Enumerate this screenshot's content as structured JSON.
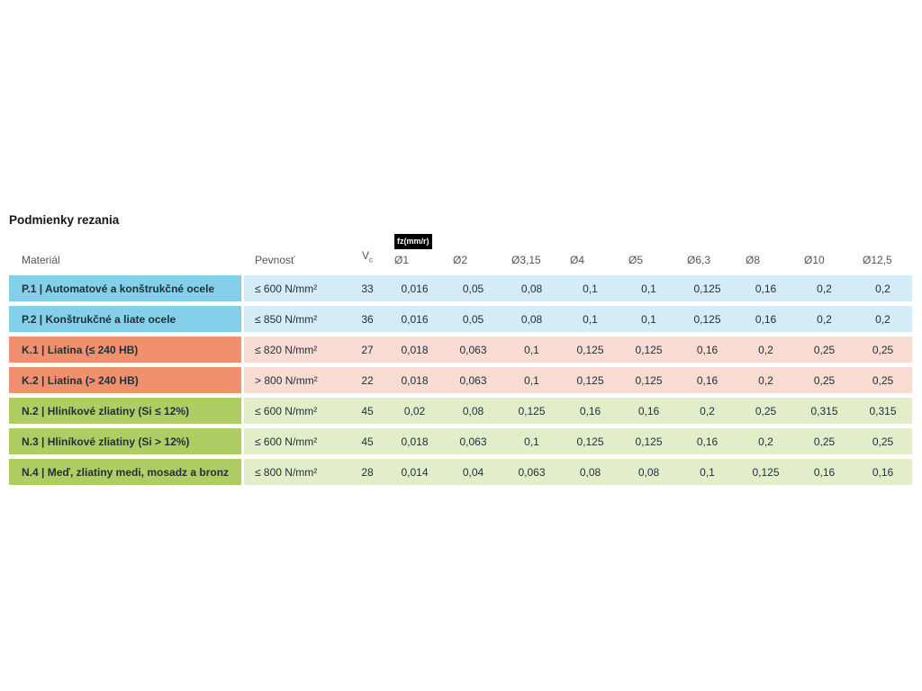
{
  "title": "Podmienky rezania",
  "table": {
    "headers": {
      "material": "Materiál",
      "strength": "Pevnosť",
      "vc_symbol": "V",
      "vc_subscript": "c",
      "fz_badge": "fz(mm/r)",
      "diameters": [
        "Ø1",
        "Ø2",
        "Ø3,15",
        "Ø4",
        "Ø5",
        "Ø6,3",
        "Ø8",
        "Ø10",
        "Ø12,5"
      ]
    },
    "rows": [
      {
        "group": "P",
        "material": "P.1 | Automatové a konštrukčné ocele",
        "strength": "≤ 600 N/mm²",
        "vc": "33",
        "feeds": [
          "0,016",
          "0,05",
          "0,08",
          "0,1",
          "0,1",
          "0,125",
          "0,16",
          "0,2",
          "0,2"
        ]
      },
      {
        "group": "P",
        "material": "P.2 | Konštrukčné a liate ocele",
        "strength": "≤ 850 N/mm²",
        "vc": "36",
        "feeds": [
          "0,016",
          "0,05",
          "0,08",
          "0,1",
          "0,1",
          "0,125",
          "0,16",
          "0,2",
          "0,2"
        ]
      },
      {
        "group": "K",
        "material": "K.1 | Liatina (≤ 240 HB)",
        "strength": "≤ 820 N/mm²",
        "vc": "27",
        "feeds": [
          "0,018",
          "0,063",
          "0,1",
          "0,125",
          "0,125",
          "0,16",
          "0,2",
          "0,25",
          "0,25"
        ]
      },
      {
        "group": "K",
        "material": "K.2 | Liatina (> 240 HB)",
        "strength": "> 800 N/mm²",
        "vc": "22",
        "feeds": [
          "0,018",
          "0,063",
          "0,1",
          "0,125",
          "0,125",
          "0,16",
          "0,2",
          "0,25",
          "0,25"
        ]
      },
      {
        "group": "N",
        "material": "N.2 | Hliníkové zliatiny (Si ≤ 12%)",
        "strength": "≤ 600 N/mm²",
        "vc": "45",
        "feeds": [
          "0,02",
          "0,08",
          "0,125",
          "0,16",
          "0,16",
          "0,2",
          "0,25",
          "0,315",
          "0,315"
        ]
      },
      {
        "group": "N",
        "material": "N.3 | Hliníkové zliatiny (Si > 12%)",
        "strength": "≤ 600 N/mm²",
        "vc": "45",
        "feeds": [
          "0,018",
          "0,063",
          "0,1",
          "0,125",
          "0,125",
          "0,16",
          "0,2",
          "0,25",
          "0,25"
        ]
      },
      {
        "group": "N",
        "material": "N.4 | Meď, zliatiny medi, mosadz a bronz",
        "strength": "≤ 800 N/mm²",
        "vc": "28",
        "feeds": [
          "0,014",
          "0,04",
          "0,063",
          "0,08",
          "0,08",
          "0,1",
          "0,125",
          "0,16",
          "0,16"
        ]
      }
    ]
  },
  "colors": {
    "P": {
      "dark": "#84cfe9",
      "light": "#d3ecf7"
    },
    "K": {
      "dark": "#f1906f",
      "light": "#f9dcd1"
    },
    "N": {
      "dark": "#aecd62",
      "light": "#e2eeca"
    },
    "badge_bg": "#000000",
    "badge_text": "#ffffff",
    "text": "#20313b",
    "header_text": "#4b575f"
  },
  "chart_data": {
    "type": "table",
    "title": "Podmienky rezania",
    "columns": [
      "Materiál",
      "Pevnosť",
      "Vc",
      "fz(mm/r) Ø1",
      "Ø2",
      "Ø3,15",
      "Ø4",
      "Ø5",
      "Ø6,3",
      "Ø8",
      "Ø10",
      "Ø12,5"
    ],
    "rows": [
      [
        "P.1 | Automatové a konštrukčné ocele",
        "≤ 600 N/mm²",
        "33",
        "0,016",
        "0,05",
        "0,08",
        "0,1",
        "0,1",
        "0,125",
        "0,16",
        "0,2",
        "0,2"
      ],
      [
        "P.2 | Konštrukčné a liate ocele",
        "≤ 850 N/mm²",
        "36",
        "0,016",
        "0,05",
        "0,08",
        "0,1",
        "0,1",
        "0,125",
        "0,16",
        "0,2",
        "0,2"
      ],
      [
        "K.1 | Liatina (≤ 240 HB)",
        "≤ 820 N/mm²",
        "27",
        "0,018",
        "0,063",
        "0,1",
        "0,125",
        "0,125",
        "0,16",
        "0,2",
        "0,25",
        "0,25"
      ],
      [
        "K.2 | Liatina (> 240 HB)",
        "> 800 N/mm²",
        "22",
        "0,018",
        "0,063",
        "0,1",
        "0,125",
        "0,125",
        "0,16",
        "0,2",
        "0,25",
        "0,25"
      ],
      [
        "N.2 | Hliníkové zliatiny (Si ≤ 12%)",
        "≤ 600 N/mm²",
        "45",
        "0,02",
        "0,08",
        "0,125",
        "0,16",
        "0,16",
        "0,2",
        "0,25",
        "0,315",
        "0,315"
      ],
      [
        "N.3 | Hliníkové zliatiny (Si > 12%)",
        "≤ 600 N/mm²",
        "45",
        "0,018",
        "0,063",
        "0,1",
        "0,125",
        "0,125",
        "0,16",
        "0,2",
        "0,25",
        "0,25"
      ],
      [
        "N.4 | Meď, zliatiny medi, mosadz a bronz",
        "≤ 800 N/mm²",
        "28",
        "0,014",
        "0,04",
        "0,063",
        "0,08",
        "0,08",
        "0,1",
        "0,125",
        "0,16",
        "0,16"
      ]
    ],
    "row_group_colors": {
      "P": "blue",
      "K": "salmon/orange",
      "N": "green"
    }
  }
}
